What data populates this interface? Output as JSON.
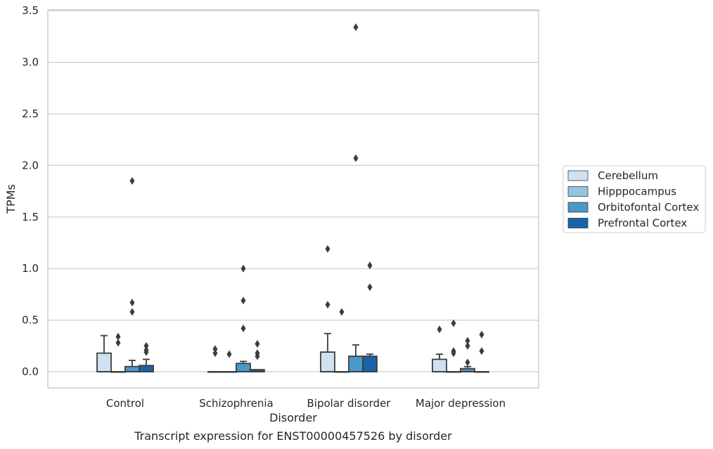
{
  "caption": "Transcript expression for ENST00000457526 by disorder",
  "chart_data": {
    "type": "box",
    "title": "",
    "xlabel": "Disorder",
    "ylabel": "TPMs",
    "ylim": [
      -0.16,
      3.52
    ],
    "yticks": [
      0.0,
      0.5,
      1.0,
      1.5,
      2.0,
      2.5,
      3.0,
      3.5
    ],
    "ytick_labels": [
      "0.0",
      "0.5",
      "1.0",
      "1.5",
      "2.0",
      "2.5",
      "3.0",
      "3.5"
    ],
    "grid": "horizontal",
    "legend_position": "outside-right",
    "categories": [
      "Control",
      "Schizophrenia",
      "Bipolar disorder",
      "Major depression"
    ],
    "series": [
      {
        "name": "Cerebellum",
        "color": "#d0e1f2",
        "boxes": [
          {
            "q1": 0.0,
            "median": 0.0,
            "q3": 0.18,
            "whisker_low": 0.0,
            "whisker_high": 0.35,
            "outliers": []
          },
          {
            "q1": 0.0,
            "median": 0.0,
            "q3": 0.0,
            "whisker_low": 0.0,
            "whisker_high": 0.0,
            "outliers": [
              0.22,
              0.18
            ]
          },
          {
            "q1": 0.0,
            "median": 0.0,
            "q3": 0.19,
            "whisker_low": 0.0,
            "whisker_high": 0.37,
            "outliers": [
              1.19,
              0.65
            ]
          },
          {
            "q1": 0.0,
            "median": 0.0,
            "q3": 0.12,
            "whisker_low": 0.0,
            "whisker_high": 0.17,
            "outliers": [
              0.41
            ]
          }
        ]
      },
      {
        "name": "Hipppocampus",
        "color": "#94c4df",
        "boxes": [
          {
            "q1": 0.0,
            "median": 0.0,
            "q3": 0.0,
            "whisker_low": 0.0,
            "whisker_high": 0.0,
            "outliers": [
              0.34,
              0.28
            ]
          },
          {
            "q1": 0.0,
            "median": 0.0,
            "q3": 0.0,
            "whisker_low": 0.0,
            "whisker_high": 0.0,
            "outliers": [
              0.17
            ]
          },
          {
            "q1": 0.0,
            "median": 0.0,
            "q3": 0.0,
            "whisker_low": 0.0,
            "whisker_high": 0.0,
            "outliers": [
              0.58
            ]
          },
          {
            "q1": 0.0,
            "median": 0.0,
            "q3": 0.0,
            "whisker_low": 0.0,
            "whisker_high": 0.0,
            "outliers": [
              0.47,
              0.2,
              0.18
            ]
          }
        ]
      },
      {
        "name": "Orbitofontal Cortex",
        "color": "#4a98c9",
        "boxes": [
          {
            "q1": 0.0,
            "median": 0.0,
            "q3": 0.05,
            "whisker_low": 0.0,
            "whisker_high": 0.11,
            "outliers": [
              1.85,
              0.67,
              0.58
            ]
          },
          {
            "q1": 0.0,
            "median": 0.0,
            "q3": 0.08,
            "whisker_low": 0.0,
            "whisker_high": 0.1,
            "outliers": [
              1.0,
              0.69,
              0.42
            ]
          },
          {
            "q1": 0.0,
            "median": 0.0,
            "q3": 0.15,
            "whisker_low": 0.0,
            "whisker_high": 0.26,
            "outliers": [
              3.34,
              2.07
            ]
          },
          {
            "q1": 0.0,
            "median": 0.0,
            "q3": 0.03,
            "whisker_low": 0.0,
            "whisker_high": 0.05,
            "outliers": [
              0.3,
              0.25,
              0.09
            ]
          }
        ]
      },
      {
        "name": "Prefrontal Cortex",
        "color": "#1764ab",
        "boxes": [
          {
            "q1": 0.0,
            "median": 0.0,
            "q3": 0.06,
            "whisker_low": 0.0,
            "whisker_high": 0.12,
            "outliers": [
              0.25,
              0.21,
              0.19
            ]
          },
          {
            "q1": 0.0,
            "median": 0.0,
            "q3": 0.02,
            "whisker_low": 0.0,
            "whisker_high": 0.02,
            "outliers": [
              0.27,
              0.18,
              0.15
            ]
          },
          {
            "q1": 0.0,
            "median": 0.0,
            "q3": 0.15,
            "whisker_low": 0.0,
            "whisker_high": 0.17,
            "outliers": [
              1.03,
              0.82
            ]
          },
          {
            "q1": 0.0,
            "median": 0.0,
            "q3": 0.0,
            "whisker_low": 0.0,
            "whisker_high": 0.0,
            "outliers": [
              0.36,
              0.2
            ]
          }
        ]
      }
    ]
  }
}
